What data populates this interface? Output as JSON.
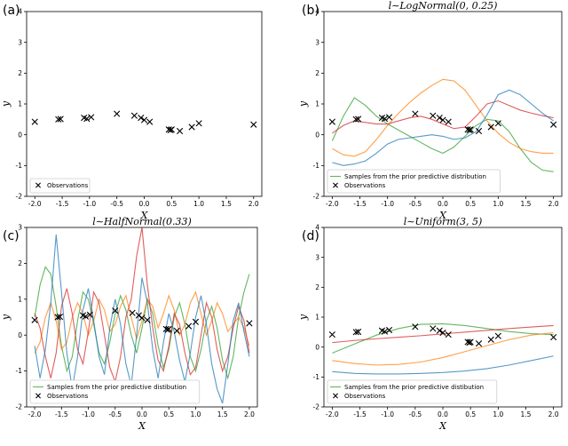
{
  "chart_data": [
    {
      "panel": "(a)",
      "type": "scatter",
      "title": "",
      "xlabel": "X",
      "ylabel": "y",
      "xlim": [
        -2.15,
        2.15
      ],
      "ylim": [
        -2,
        4
      ],
      "xticks": [
        "-2.0",
        "-1.5",
        "-1.0",
        "-0.5",
        "0.0",
        "0.5",
        "1.0",
        "1.5",
        "2.0"
      ],
      "yticks": [
        "-2",
        "-1",
        "0",
        "1",
        "2",
        "3",
        "4"
      ],
      "legend": {
        "placement": "lower-left",
        "entries": [
          "Observations"
        ]
      },
      "observations": {
        "x": [
          -2.0,
          -1.57,
          -1.53,
          -1.1,
          -1.05,
          -0.97,
          -0.5,
          -0.18,
          -0.06,
          0.0,
          0.1,
          0.45,
          0.48,
          0.5,
          0.65,
          0.87,
          1.0,
          2.0
        ],
        "y": [
          0.42,
          0.5,
          0.51,
          0.55,
          0.52,
          0.57,
          0.68,
          0.62,
          0.55,
          0.48,
          0.42,
          0.17,
          0.15,
          0.17,
          0.12,
          0.25,
          0.37,
          0.33
        ]
      },
      "series": []
    },
    {
      "panel": "(b)",
      "type": "line",
      "title": "l∼LogNormal(0, 0.25)",
      "xlabel": "X",
      "ylabel": "y",
      "xlim": [
        -2.15,
        2.15
      ],
      "ylim": [
        -2,
        4
      ],
      "xticks": [
        "-2.0",
        "-1.5",
        "-1.0",
        "-0.5",
        "0.0",
        "0.5",
        "1.0",
        "1.5",
        "2.0"
      ],
      "yticks": [
        "-2",
        "-1",
        "0",
        "1",
        "2",
        "3",
        "4"
      ],
      "legend": {
        "placement": "lower-left",
        "entries": [
          "Samples from the prior predictive distribution",
          "Observations"
        ]
      },
      "observations": {
        "x": [
          -2.0,
          -1.57,
          -1.53,
          -1.1,
          -1.05,
          -0.97,
          -0.5,
          -0.18,
          -0.06,
          0.0,
          0.1,
          0.45,
          0.48,
          0.5,
          0.65,
          0.87,
          1.0,
          2.0
        ],
        "y": [
          0.42,
          0.5,
          0.51,
          0.55,
          0.52,
          0.57,
          0.68,
          0.62,
          0.55,
          0.48,
          0.42,
          0.17,
          0.15,
          0.17,
          0.12,
          0.25,
          0.37,
          0.33
        ]
      },
      "series": [
        {
          "color": "#2ca02c",
          "x": [
            -2.0,
            -1.8,
            -1.6,
            -1.4,
            -1.2,
            -1.0,
            -0.8,
            -0.6,
            -0.4,
            -0.2,
            0.0,
            0.2,
            0.4,
            0.6,
            0.8,
            1.0,
            1.2,
            1.4,
            1.6,
            1.8,
            2.0
          ],
          "y": [
            -0.2,
            0.6,
            1.2,
            0.95,
            0.6,
            0.35,
            0.15,
            -0.05,
            -0.25,
            -0.45,
            -0.6,
            -0.4,
            -0.05,
            0.3,
            0.5,
            0.45,
            0.1,
            -0.45,
            -0.9,
            -1.15,
            -1.2
          ]
        },
        {
          "color": "#ff7f0e",
          "x": [
            -2.0,
            -1.8,
            -1.6,
            -1.4,
            -1.2,
            -1.0,
            -0.8,
            -0.6,
            -0.4,
            -0.2,
            0.0,
            0.2,
            0.4,
            0.6,
            0.8,
            1.0,
            1.2,
            1.4,
            1.6,
            1.8,
            2.0
          ],
          "y": [
            -0.45,
            -0.65,
            -0.7,
            -0.55,
            -0.15,
            0.3,
            0.7,
            1.05,
            1.35,
            1.6,
            1.8,
            1.75,
            1.45,
            0.95,
            0.45,
            0.05,
            -0.25,
            -0.45,
            -0.55,
            -0.6,
            -0.6
          ]
        },
        {
          "color": "#d62728",
          "x": [
            -2.0,
            -1.8,
            -1.6,
            -1.4,
            -1.2,
            -1.0,
            -0.8,
            -0.6,
            -0.4,
            -0.2,
            0.0,
            0.2,
            0.4,
            0.6,
            0.8,
            1.0,
            1.2,
            1.4,
            1.6,
            1.8,
            2.0
          ],
          "y": [
            0.05,
            0.3,
            0.45,
            0.4,
            0.35,
            0.35,
            0.45,
            0.55,
            0.6,
            0.5,
            0.35,
            0.2,
            0.25,
            0.6,
            1.0,
            1.1,
            0.95,
            0.8,
            0.7,
            0.62,
            0.55
          ]
        },
        {
          "color": "#1f77b4",
          "x": [
            -2.0,
            -1.8,
            -1.6,
            -1.4,
            -1.2,
            -1.0,
            -0.8,
            -0.6,
            -0.4,
            -0.2,
            0.0,
            0.2,
            0.4,
            0.6,
            0.8,
            1.0,
            1.2,
            1.4,
            1.6,
            1.8,
            2.0
          ],
          "y": [
            -0.9,
            -1.0,
            -0.95,
            -0.85,
            -0.6,
            -0.3,
            -0.15,
            -0.1,
            -0.05,
            0.0,
            -0.05,
            -0.15,
            -0.1,
            0.1,
            0.65,
            1.3,
            1.45,
            1.3,
            1.0,
            0.7,
            0.45
          ]
        }
      ]
    },
    {
      "panel": "(c)",
      "type": "line",
      "title": "l∼HalfNormal(0.33)",
      "xlabel": "X",
      "ylabel": "y",
      "xlim": [
        -2.15,
        2.15
      ],
      "ylim": [
        -2,
        3
      ],
      "xticks": [
        "-2.0",
        "-1.5",
        "-1.0",
        "-0.5",
        "0.0",
        "0.5",
        "1.0",
        "1.5",
        "2.0"
      ],
      "yticks": [
        "-2",
        "-1",
        "0",
        "1",
        "2",
        "3"
      ],
      "legend": {
        "placement": "lower-left",
        "entries": [
          "Samples from the prior predictive distibution",
          "Observations"
        ]
      },
      "observations": {
        "x": [
          -2.0,
          -1.57,
          -1.53,
          -1.1,
          -1.05,
          -0.97,
          -0.5,
          -0.18,
          -0.06,
          0.0,
          0.1,
          0.45,
          0.48,
          0.5,
          0.65,
          0.87,
          1.0,
          2.0
        ],
        "y": [
          0.42,
          0.5,
          0.51,
          0.55,
          0.52,
          0.57,
          0.68,
          0.62,
          0.55,
          0.48,
          0.42,
          0.17,
          0.15,
          0.17,
          0.12,
          0.25,
          0.37,
          0.33
        ]
      },
      "series": [
        {
          "color": "#2ca02c",
          "x": [
            -2.0,
            -1.9,
            -1.8,
            -1.7,
            -1.6,
            -1.5,
            -1.4,
            -1.3,
            -1.2,
            -1.1,
            -1.0,
            -0.9,
            -0.8,
            -0.7,
            -0.6,
            -0.5,
            -0.4,
            -0.3,
            -0.2,
            -0.1,
            0.0,
            0.1,
            0.2,
            0.3,
            0.4,
            0.5,
            0.6,
            0.7,
            0.8,
            0.9,
            1.0,
            1.1,
            1.2,
            1.3,
            1.4,
            1.5,
            1.6,
            1.7,
            1.8,
            1.9,
            2.0
          ],
          "y": [
            0.5,
            1.4,
            1.9,
            1.7,
            0.8,
            -0.3,
            -1.0,
            -0.6,
            0.4,
            1.2,
            1.0,
            0.3,
            -0.5,
            -0.8,
            -0.2,
            0.6,
            1.1,
            0.7,
            0.0,
            -0.5,
            0.2,
            1.0,
            0.6,
            -0.3,
            -0.9,
            -0.4,
            0.5,
            0.9,
            0.3,
            -0.6,
            -1.0,
            -0.4,
            0.4,
            0.8,
            0.2,
            -0.7,
            -1.2,
            -0.6,
            0.5,
            1.2,
            1.7
          ]
        },
        {
          "color": "#ff7f0e",
          "x": [
            -2.0,
            -1.9,
            -1.8,
            -1.7,
            -1.6,
            -1.5,
            -1.4,
            -1.3,
            -1.2,
            -1.1,
            -1.0,
            -0.9,
            -0.8,
            -0.7,
            -0.6,
            -0.5,
            -0.4,
            -0.3,
            -0.2,
            -0.1,
            0.0,
            0.1,
            0.2,
            0.3,
            0.4,
            0.5,
            0.6,
            0.7,
            0.8,
            0.9,
            1.0,
            1.1,
            1.2,
            1.3,
            1.4,
            1.5,
            1.6,
            1.7,
            1.8,
            1.9,
            2.0
          ],
          "y": [
            -0.5,
            -0.2,
            0.5,
            0.9,
            0.4,
            -0.4,
            -0.2,
            0.5,
            0.9,
            0.6,
            0.0,
            0.4,
            1.0,
            0.7,
            0.1,
            0.3,
            0.8,
            1.1,
            0.5,
            -0.1,
            0.4,
            1.0,
            0.8,
            0.2,
            0.6,
            1.1,
            0.7,
            0.0,
            0.3,
            0.9,
            1.2,
            0.6,
            0.0,
            0.4,
            0.9,
            0.6,
            0.1,
            0.3,
            0.5,
            0.2,
            -0.3
          ]
        },
        {
          "color": "#d62728",
          "x": [
            -2.0,
            -1.9,
            -1.8,
            -1.7,
            -1.6,
            -1.5,
            -1.4,
            -1.3,
            -1.2,
            -1.1,
            -1.0,
            -0.9,
            -0.8,
            -0.7,
            -0.6,
            -0.5,
            -0.4,
            -0.3,
            -0.2,
            -0.1,
            0.0,
            0.1,
            0.2,
            0.3,
            0.4,
            0.5,
            0.6,
            0.7,
            0.8,
            0.9,
            1.0,
            1.1,
            1.2,
            1.3,
            1.4,
            1.5,
            1.6,
            1.7,
            1.8,
            1.9,
            2.0
          ],
          "y": [
            0.6,
            0.2,
            -0.6,
            -1.2,
            -0.5,
            0.8,
            1.3,
            0.6,
            -0.4,
            -0.8,
            0.1,
            1.2,
            0.9,
            0.0,
            -0.9,
            -1.3,
            -0.6,
            0.5,
            1.0,
            2.2,
            3.0,
            1.4,
            0.2,
            -0.7,
            -1.0,
            -0.3,
            0.6,
            0.3,
            -0.5,
            -1.1,
            -0.9,
            0.0,
            0.9,
            0.5,
            -0.4,
            -1.0,
            -0.6,
            0.2,
            0.8,
            0.4,
            -0.5
          ]
        },
        {
          "color": "#1f77b4",
          "x": [
            -2.0,
            -1.9,
            -1.8,
            -1.7,
            -1.6,
            -1.5,
            -1.4,
            -1.3,
            -1.2,
            -1.1,
            -1.0,
            -0.9,
            -0.8,
            -0.7,
            -0.6,
            -0.5,
            -0.4,
            -0.3,
            -0.2,
            -0.1,
            0.0,
            0.1,
            0.2,
            0.3,
            0.4,
            0.5,
            0.6,
            0.7,
            0.8,
            0.9,
            1.0,
            1.1,
            1.2,
            1.3,
            1.4,
            1.5,
            1.6,
            1.7,
            1.8,
            1.9,
            2.0
          ],
          "y": [
            -0.3,
            -1.2,
            -0.4,
            0.9,
            2.8,
            1.2,
            -0.5,
            -1.5,
            -0.6,
            0.7,
            1.3,
            0.4,
            -0.6,
            -1.1,
            0.2,
            1.0,
            0.3,
            -0.8,
            -1.4,
            0.0,
            1.6,
            0.9,
            -0.4,
            -1.2,
            -0.2,
            0.6,
            0.1,
            -0.7,
            -1.3,
            -0.5,
            0.5,
            1.1,
            0.3,
            -0.8,
            -1.5,
            -1.9,
            -0.8,
            0.4,
            0.9,
            0.1,
            -0.6
          ]
        }
      ]
    },
    {
      "panel": "(d)",
      "type": "line",
      "title": "l∼Uniform(3,  5)",
      "xlabel": "X",
      "ylabel": "y",
      "xlim": [
        -2.15,
        2.15
      ],
      "ylim": [
        -2,
        4
      ],
      "xticks": [
        "-2.0",
        "-1.5",
        "-1.0",
        "-0.5",
        "0.0",
        "0.5",
        "1.0",
        "1.5",
        "2.0"
      ],
      "yticks": [
        "-2",
        "-1",
        "0",
        "1",
        "2",
        "3",
        "4"
      ],
      "legend": {
        "placement": "lower-left",
        "entries": [
          "Samples from the prior predictive distibution",
          "Observations"
        ]
      },
      "observations": {
        "x": [
          -2.0,
          -1.57,
          -1.53,
          -1.1,
          -1.05,
          -0.97,
          -0.5,
          -0.18,
          -0.06,
          0.0,
          0.1,
          0.45,
          0.48,
          0.5,
          0.65,
          0.87,
          1.0,
          2.0
        ],
        "y": [
          0.42,
          0.5,
          0.51,
          0.55,
          0.52,
          0.57,
          0.68,
          0.62,
          0.55,
          0.48,
          0.42,
          0.17,
          0.15,
          0.17,
          0.12,
          0.25,
          0.37,
          0.33
        ]
      },
      "series": [
        {
          "color": "#2ca02c",
          "x": [
            -2.0,
            -1.6,
            -1.2,
            -0.8,
            -0.4,
            0.0,
            0.4,
            0.8,
            1.2,
            1.6,
            2.0
          ],
          "y": [
            -0.2,
            0.1,
            0.4,
            0.62,
            0.76,
            0.78,
            0.72,
            0.62,
            0.52,
            0.45,
            0.42
          ]
        },
        {
          "color": "#ff7f0e",
          "x": [
            -2.0,
            -1.6,
            -1.2,
            -0.8,
            -0.4,
            0.0,
            0.4,
            0.8,
            1.2,
            1.6,
            2.0
          ],
          "y": [
            -0.45,
            -0.55,
            -0.6,
            -0.58,
            -0.5,
            -0.35,
            -0.15,
            0.05,
            0.25,
            0.4,
            0.48
          ]
        },
        {
          "color": "#d62728",
          "x": [
            -2.0,
            -1.6,
            -1.2,
            -0.8,
            -0.4,
            0.0,
            0.4,
            0.8,
            1.2,
            1.6,
            2.0
          ],
          "y": [
            0.15,
            0.22,
            0.28,
            0.33,
            0.38,
            0.44,
            0.5,
            0.56,
            0.62,
            0.67,
            0.72
          ]
        },
        {
          "color": "#1f77b4",
          "x": [
            -2.0,
            -1.6,
            -1.2,
            -0.8,
            -0.4,
            0.0,
            0.4,
            0.8,
            1.2,
            1.6,
            2.0
          ],
          "y": [
            -0.82,
            -0.88,
            -0.9,
            -0.9,
            -0.88,
            -0.85,
            -0.8,
            -0.72,
            -0.6,
            -0.45,
            -0.3
          ]
        }
      ]
    }
  ]
}
